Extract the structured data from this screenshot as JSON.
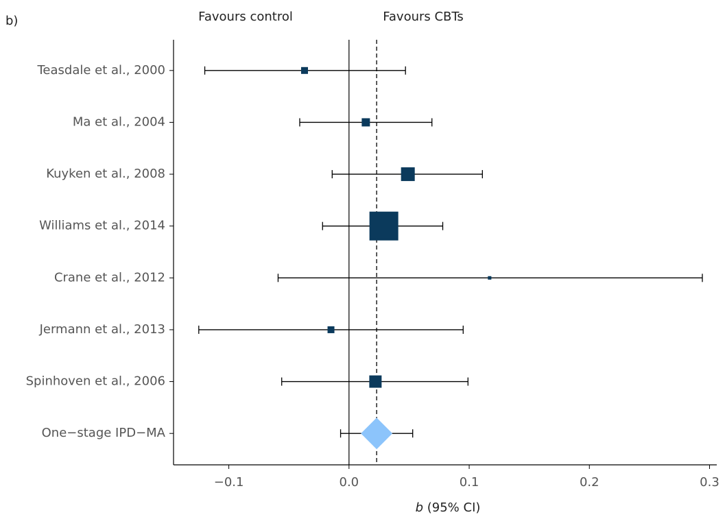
{
  "chart_data": {
    "type": "forest",
    "panel_label": "b)",
    "left_label": "Favours control",
    "right_label": "Favours CBTs",
    "xlabel_var": "b",
    "xlabel": "(95% CI)",
    "categories": [
      "Teasdale et al., 2000",
      "Ma et al., 2004",
      "Kuyken et al., 2008",
      "Williams et al., 2014",
      "Crane et al., 2012",
      "Jermann et al., 2013",
      "Spinhoven et al., 2006",
      "One−stage IPD−MA"
    ],
    "values": [
      -0.037,
      0.014,
      0.049,
      0.029,
      0.117,
      -0.015,
      0.022,
      0.023
    ],
    "lower": [
      -0.12,
      -0.041,
      -0.014,
      -0.022,
      -0.059,
      -0.125,
      -0.056,
      -0.007
    ],
    "upper": [
      0.047,
      0.069,
      0.111,
      0.078,
      0.294,
      0.095,
      0.099,
      0.053
    ],
    "weights": [
      3.5,
      5.0,
      14.0,
      61.7,
      0.9,
      3.5,
      11.3,
      null
    ],
    "pooled_index": 7,
    "color": "#0b3a5c",
    "pooled_color": "#8cc4fb",
    "xlim": [
      -0.146,
      0.306
    ],
    "xticks": [
      {
        "value": -0.1,
        "label": "−0.1"
      },
      {
        "value": 0,
        "label": "0.0"
      },
      {
        "value": 0.1,
        "label": "0.1"
      },
      {
        "value": 0.2,
        "label": "0.2"
      },
      {
        "value": 0.3,
        "label": "0.3"
      }
    ],
    "reference_line": 0
  }
}
